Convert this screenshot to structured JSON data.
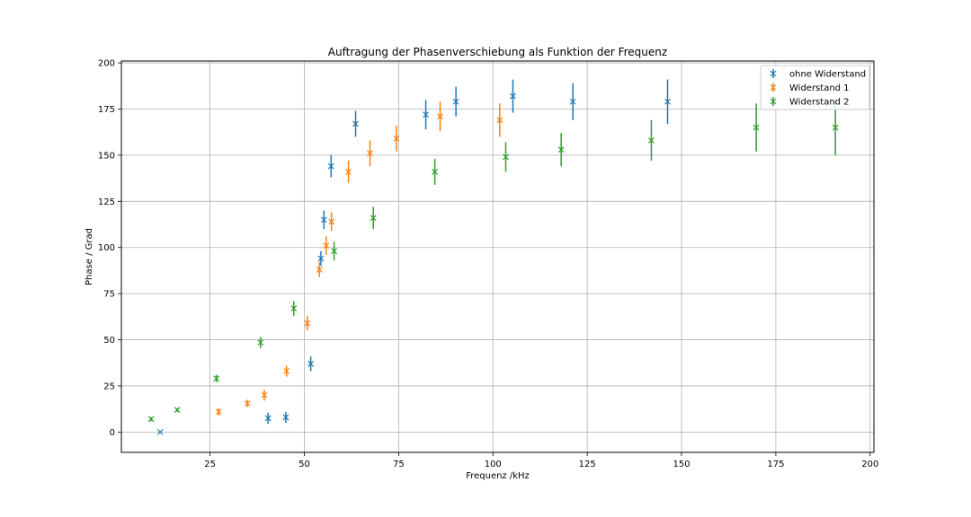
{
  "chart_data": {
    "type": "scatter",
    "title": "Auftragung der Phasenverschiebung als Funktion der Frequenz",
    "xlabel": "Frequenz /kHz",
    "ylabel": "Phase / Grad",
    "xlim": [
      1.5,
      201
    ],
    "ylim": [
      -11,
      201
    ],
    "xticks": [
      25,
      50,
      75,
      100,
      125,
      150,
      175,
      200
    ],
    "yticks": [
      0,
      25,
      50,
      75,
      100,
      125,
      150,
      175,
      200
    ],
    "grid": true,
    "legend_position": "top-right",
    "series": [
      {
        "name": "ohne Widerstand",
        "color": "#1f77b4",
        "points": [
          {
            "x": 11.8,
            "y": 0,
            "err": 0
          },
          {
            "x": 40.4,
            "y": 7.5,
            "err": 3
          },
          {
            "x": 45.1,
            "y": 8,
            "err": 3
          },
          {
            "x": 51.7,
            "y": 37,
            "err": 4
          },
          {
            "x": 54.4,
            "y": 94,
            "err": 4
          },
          {
            "x": 55.2,
            "y": 115,
            "err": 5
          },
          {
            "x": 57.1,
            "y": 144,
            "err": 6
          },
          {
            "x": 63.6,
            "y": 167,
            "err": 7
          },
          {
            "x": 82.2,
            "y": 172,
            "err": 8
          },
          {
            "x": 90.2,
            "y": 179,
            "err": 8
          },
          {
            "x": 105.3,
            "y": 182,
            "err": 9
          },
          {
            "x": 121.2,
            "y": 179,
            "err": 10
          },
          {
            "x": 146.3,
            "y": 179,
            "err": 12
          }
        ]
      },
      {
        "name": "Widerstand 1",
        "color": "#ff7f0e",
        "points": [
          {
            "x": 27.3,
            "y": 11,
            "err": 2
          },
          {
            "x": 34.9,
            "y": 15.5,
            "err": 2
          },
          {
            "x": 39.4,
            "y": 20,
            "err": 3
          },
          {
            "x": 45.3,
            "y": 33,
            "err": 3
          },
          {
            "x": 50.8,
            "y": 59,
            "err": 4
          },
          {
            "x": 54.0,
            "y": 88,
            "err": 4
          },
          {
            "x": 55.8,
            "y": 101,
            "err": 5
          },
          {
            "x": 57.2,
            "y": 114,
            "err": 5
          },
          {
            "x": 61.7,
            "y": 141,
            "err": 6
          },
          {
            "x": 67.4,
            "y": 151,
            "err": 7
          },
          {
            "x": 74.4,
            "y": 159,
            "err": 7
          },
          {
            "x": 86.0,
            "y": 171,
            "err": 8
          },
          {
            "x": 101.8,
            "y": 169,
            "err": 9
          }
        ]
      },
      {
        "name": "Widerstand 2",
        "color": "#2ca02c",
        "points": [
          {
            "x": 9.4,
            "y": 7,
            "err": 1
          },
          {
            "x": 16.3,
            "y": 12,
            "err": 1
          },
          {
            "x": 26.7,
            "y": 29,
            "err": 2
          },
          {
            "x": 38.4,
            "y": 48.5,
            "err": 3
          },
          {
            "x": 47.2,
            "y": 67,
            "err": 4
          },
          {
            "x": 57.9,
            "y": 98,
            "err": 5
          },
          {
            "x": 68.3,
            "y": 116,
            "err": 6
          },
          {
            "x": 84.6,
            "y": 141,
            "err": 7
          },
          {
            "x": 103.4,
            "y": 149,
            "err": 8
          },
          {
            "x": 118.1,
            "y": 153,
            "err": 9
          },
          {
            "x": 142.0,
            "y": 158,
            "err": 11
          },
          {
            "x": 169.8,
            "y": 165,
            "err": 13
          },
          {
            "x": 190.8,
            "y": 165,
            "err": 15
          }
        ]
      }
    ]
  }
}
